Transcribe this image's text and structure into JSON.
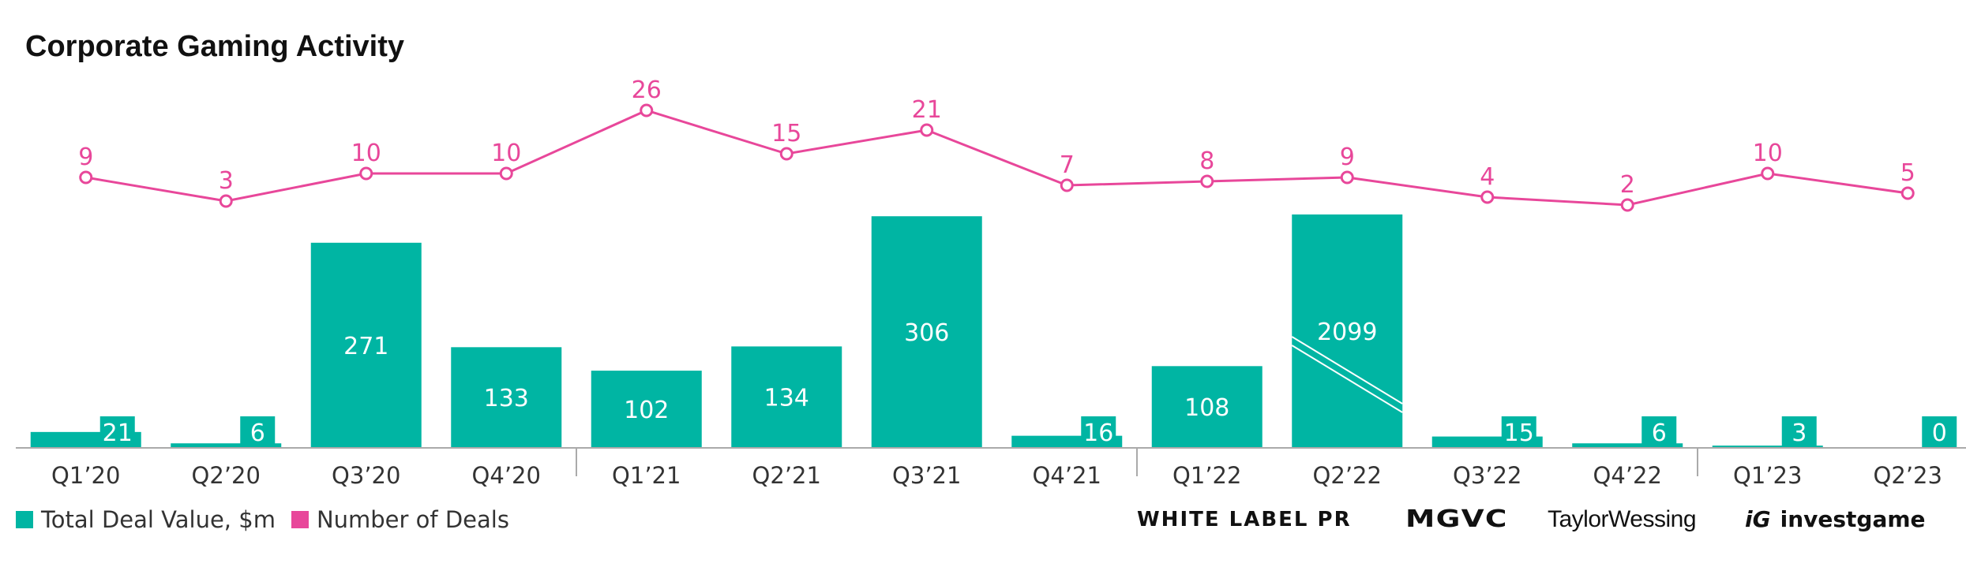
{
  "chart_data": {
    "type": "bar",
    "title": "Corporate Gaming Activity",
    "categories": [
      "Q1’20",
      "Q2’20",
      "Q3’20",
      "Q4’20",
      "Q1’21",
      "Q2’21",
      "Q3’21",
      "Q4’21",
      "Q1’22",
      "Q2’22",
      "Q3’22",
      "Q4’22",
      "Q1’23",
      "Q2’23"
    ],
    "series": [
      {
        "name": "Total Deal Value, $m",
        "type": "bar",
        "color": "#00b5a3",
        "values": [
          21,
          6,
          271,
          133,
          102,
          134,
          306,
          16,
          108,
          2099,
          15,
          6,
          3,
          0
        ]
      },
      {
        "name": "Number of Deals",
        "type": "line",
        "color": "#e8479a",
        "values": [
          9,
          3,
          10,
          10,
          26,
          15,
          21,
          7,
          8,
          9,
          4,
          2,
          10,
          5
        ]
      }
    ],
    "axis_break": {
      "category": "Q2’22",
      "note": "bar truncated with break marks"
    },
    "year_separators_after": [
      "Q4’20",
      "Q4’21",
      "Q4’22"
    ],
    "grid": false,
    "legend_position": "bottom-left"
  },
  "logos": {
    "white_label_pr": "WHITE LABEL PR",
    "mgvc": "MGVC",
    "taylor_wessing": "TaylorWessing",
    "investgame_mark": "iG",
    "investgame": "investgame"
  }
}
